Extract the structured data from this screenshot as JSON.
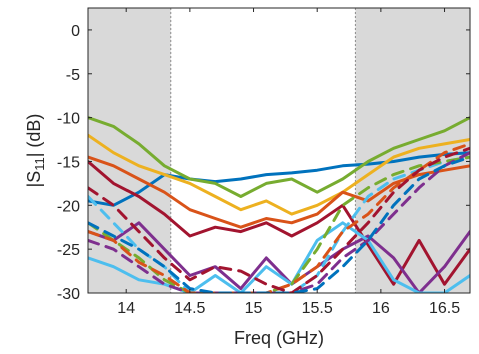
{
  "chart_data": {
    "type": "line",
    "title": "",
    "xlabel": "Freq (GHz)",
    "ylabel_parts": {
      "pre": "|S",
      "sub": "11",
      "post": "| (dB)"
    },
    "xlim": [
      13.7,
      16.7
    ],
    "ylim": [
      -30,
      2.5
    ],
    "xticks": [
      14,
      14.5,
      15,
      15.5,
      16,
      16.5
    ],
    "xtick_labels": [
      "14",
      "14.5",
      "15",
      "15.5",
      "16",
      "16.5"
    ],
    "yticks": [
      0,
      -5,
      -10,
      -15,
      -20,
      -25,
      -30
    ],
    "ytick_labels": [
      "0",
      "-5",
      "-10",
      "-15",
      "-20",
      "-25",
      "-30"
    ],
    "shaded_regions": [
      {
        "from": 13.7,
        "to": 14.35
      },
      {
        "from": 15.8,
        "to": 16.7
      }
    ],
    "shade_color": "#d9d9d9",
    "grid": false,
    "legend": "none",
    "x": [
      13.7,
      13.9,
      14.1,
      14.3,
      14.5,
      14.7,
      14.9,
      15.1,
      15.3,
      15.5,
      15.7,
      15.9,
      16.1,
      16.3,
      16.5,
      16.7
    ],
    "series": [
      {
        "color": "#0072bd",
        "style": "solid",
        "values": [
          -19.5,
          -20.0,
          -18.5,
          -16.5,
          -17.0,
          -17.3,
          -17.0,
          -16.5,
          -16.3,
          -16.0,
          -15.5,
          -15.3,
          -15.0,
          -14.5,
          -14.2,
          -14.0
        ]
      },
      {
        "color": "#77ac30",
        "style": "solid",
        "values": [
          -10.0,
          -11.0,
          -13.0,
          -15.5,
          -17.0,
          -17.5,
          -19.0,
          -17.5,
          -17.0,
          -18.5,
          -17.0,
          -15.0,
          -13.5,
          -12.5,
          -11.5,
          -10.0
        ]
      },
      {
        "color": "#edb120",
        "style": "solid",
        "values": [
          -12.0,
          -14.0,
          -15.5,
          -16.5,
          -17.5,
          -19.0,
          -20.5,
          -19.5,
          -21.0,
          -20.0,
          -18.5,
          -16.5,
          -14.5,
          -13.5,
          -13.0,
          -12.5
        ]
      },
      {
        "color": "#d95319",
        "style": "solid",
        "values": [
          -14.5,
          -15.5,
          -17.0,
          -18.5,
          -20.5,
          -21.5,
          -22.5,
          -21.5,
          -22.0,
          -21.0,
          -18.5,
          -19.5,
          -17.5,
          -16.5,
          -16.0,
          -15.5
        ]
      },
      {
        "color": "#a2142f",
        "style": "solid",
        "values": [
          -15.0,
          -17.5,
          -19.0,
          -21.0,
          -23.5,
          -22.5,
          -23.0,
          -22.0,
          -23.5,
          -22.0,
          -20.0,
          -24.5,
          -29.0,
          -24.0,
          -29.0,
          -25.0
        ]
      },
      {
        "color": "#7e2f8e",
        "style": "solid",
        "values": [
          -23.0,
          -24.0,
          -22.0,
          -25.0,
          -28.0,
          -27.0,
          -29.5,
          -26.0,
          -29.0,
          -27.0,
          -25.0,
          -23.5,
          -26.0,
          -30.0,
          -27.0,
          -23.0
        ]
      },
      {
        "color": "#4dbeee",
        "style": "solid",
        "values": [
          -26.0,
          -27.0,
          -28.5,
          -29.0,
          -30.0,
          -28.0,
          -30.0,
          -27.0,
          -29.0,
          -24.0,
          -22.0,
          -24.0,
          -28.5,
          -30.0,
          -30.0,
          -28.0
        ]
      },
      {
        "color": "#4dbeee",
        "style": "dashed",
        "values": [
          -19.0,
          -22.0,
          -25.0,
          -27.0,
          -30.0,
          -30.0,
          -30.0,
          -30.0,
          -30.0,
          -28.0,
          -23.0,
          -19.0,
          -17.0,
          -16.0,
          -15.0,
          -14.5
        ]
      },
      {
        "color": "#77ac30",
        "style": "dashed",
        "values": [
          -22.0,
          -24.0,
          -26.0,
          -28.5,
          -30.0,
          -30.0,
          -30.0,
          -30.0,
          -29.0,
          -25.0,
          -20.0,
          -18.0,
          -16.5,
          -15.5,
          -15.0,
          -14.5
        ]
      },
      {
        "color": "#7e2f8e",
        "style": "dashed",
        "values": [
          -24.0,
          -25.0,
          -27.0,
          -29.0,
          -30.0,
          -30.0,
          -30.0,
          -30.0,
          -30.0,
          -29.0,
          -26.0,
          -24.0,
          -21.0,
          -18.0,
          -15.5,
          -14.0
        ]
      },
      {
        "color": "#d95319",
        "style": "dashed",
        "values": [
          -23.0,
          -24.0,
          -26.5,
          -28.0,
          -30.0,
          -30.0,
          -30.0,
          -30.0,
          -29.0,
          -27.0,
          -23.0,
          -21.0,
          -18.0,
          -16.0,
          -14.0,
          -13.0
        ]
      },
      {
        "color": "#a2142f",
        "style": "dashed",
        "values": [
          -18.0,
          -20.0,
          -23.0,
          -26.0,
          -28.5,
          -27.0,
          -27.5,
          -29.0,
          -30.0,
          -28.0,
          -25.0,
          -22.0,
          -18.5,
          -16.0,
          -14.5,
          -13.5
        ]
      },
      {
        "color": "#0072bd",
        "style": "dashed",
        "values": [
          -22.0,
          -23.5,
          -25.0,
          -27.0,
          -29.5,
          -30.0,
          -30.0,
          -30.0,
          -30.0,
          -29.5,
          -27.0,
          -24.0,
          -20.0,
          -17.0,
          -15.5,
          -14.5
        ]
      }
    ]
  }
}
